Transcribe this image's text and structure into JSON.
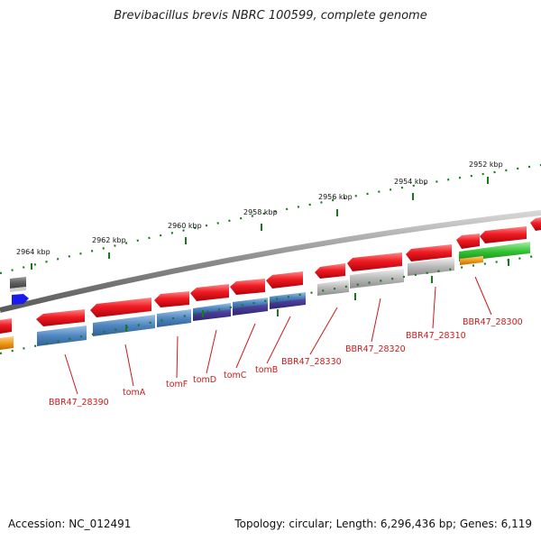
{
  "title": "Brevibacillus brevis NBRC 100599, complete genome",
  "accession": "Accession: NC_012491",
  "topology": "Topology: circular; Length: 6,296,436 bp; Genes: 6,119",
  "scale_labels": [
    "2964 kbp",
    "2962 kbp",
    "2960 kbp",
    "2958 kbp",
    "2956 kbp",
    "2954 kbp",
    "2952 kbp"
  ],
  "gene_labels": [
    "BBR47_28390",
    "tomA",
    "tomF",
    "tomD",
    "tomC",
    "tomB",
    "BBR47_28330",
    "BBR47_28320",
    "BBR47_28310",
    "BBR47_28300"
  ],
  "colors": {
    "gene": "#e8141c",
    "cds_blue": "#4f86c0",
    "cds_purple": "#4b3f9a",
    "cds_grey": "#b8b8b8",
    "cds_green": "#33c233",
    "cds_orange": "#f09a1a",
    "tick": "#1a7a1a",
    "backbone": "#8a8a8a",
    "label": "#cc1a1a"
  }
}
